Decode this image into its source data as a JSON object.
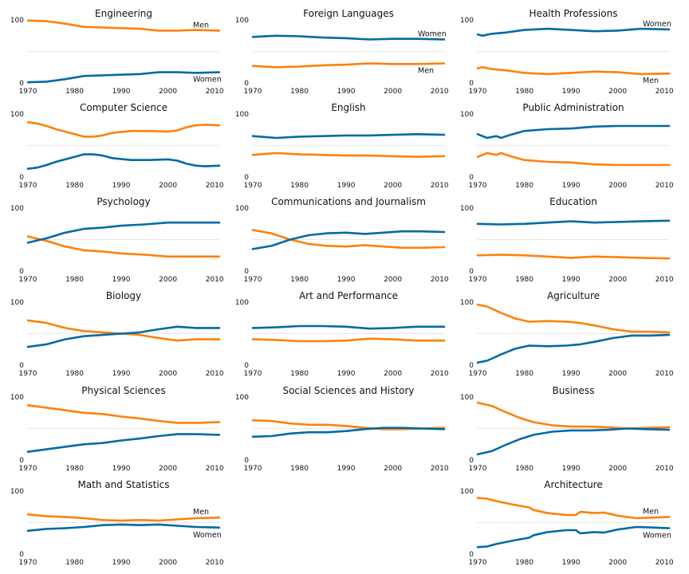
{
  "chart_data": {
    "type": "line",
    "title": "",
    "x_ticks": [
      "1970",
      "1980",
      "1990",
      "2000",
      "2010"
    ],
    "y_ticks": [
      "0",
      "100"
    ],
    "xlim": [
      1970,
      2011
    ],
    "ylim": [
      0,
      100
    ],
    "colors": {
      "women": "#006ba4",
      "men": "#ff800e",
      "grid": "#e6e6e6"
    },
    "panels": [
      {
        "title": "Engineering",
        "women_label": "Women",
        "men_label": "Men",
        "women": [
          [
            1970,
            1
          ],
          [
            1974,
            2
          ],
          [
            1978,
            6
          ],
          [
            1982,
            11
          ],
          [
            1986,
            12
          ],
          [
            1990,
            13
          ],
          [
            1994,
            14
          ],
          [
            1998,
            17
          ],
          [
            2002,
            17
          ],
          [
            2006,
            16
          ],
          [
            2011,
            17
          ]
        ]
      },
      {
        "title": "Foreign Languages",
        "women_label": "Women",
        "men_label": "Men",
        "women": [
          [
            1970,
            73
          ],
          [
            1975,
            75
          ],
          [
            1980,
            74
          ],
          [
            1985,
            72
          ],
          [
            1990,
            71
          ],
          [
            1995,
            69
          ],
          [
            2000,
            70
          ],
          [
            2005,
            70
          ],
          [
            2011,
            69
          ]
        ]
      },
      {
        "title": "Health Professions",
        "women_label": "Women",
        "men_label": "Men",
        "women": [
          [
            1970,
            77
          ],
          [
            1971,
            75
          ],
          [
            1973,
            78
          ],
          [
            1976,
            80
          ],
          [
            1980,
            84
          ],
          [
            1985,
            86
          ],
          [
            1990,
            84
          ],
          [
            1995,
            82
          ],
          [
            2000,
            83
          ],
          [
            2005,
            86
          ],
          [
            2011,
            85
          ]
        ]
      },
      {
        "title": "Computer Science",
        "women": [
          [
            1970,
            13
          ],
          [
            1972,
            15
          ],
          [
            1974,
            19
          ],
          [
            1976,
            24
          ],
          [
            1978,
            28
          ],
          [
            1980,
            32
          ],
          [
            1982,
            36
          ],
          [
            1984,
            36
          ],
          [
            1986,
            34
          ],
          [
            1988,
            30
          ],
          [
            1992,
            27
          ],
          [
            1996,
            27
          ],
          [
            2000,
            28
          ],
          [
            2002,
            26
          ],
          [
            2004,
            21
          ],
          [
            2006,
            18
          ],
          [
            2008,
            17
          ],
          [
            2011,
            18
          ]
        ]
      },
      {
        "title": "English",
        "women": [
          [
            1970,
            65
          ],
          [
            1975,
            62
          ],
          [
            1980,
            64
          ],
          [
            1985,
            65
          ],
          [
            1990,
            66
          ],
          [
            1995,
            66
          ],
          [
            2000,
            67
          ],
          [
            2005,
            68
          ],
          [
            2011,
            67
          ]
        ]
      },
      {
        "title": "Public Administration",
        "women": [
          [
            1970,
            68
          ],
          [
            1972,
            62
          ],
          [
            1974,
            65
          ],
          [
            1975,
            62
          ],
          [
            1977,
            67
          ],
          [
            1980,
            73
          ],
          [
            1985,
            76
          ],
          [
            1990,
            77
          ],
          [
            1995,
            80
          ],
          [
            2000,
            81
          ],
          [
            2005,
            81
          ],
          [
            2011,
            81
          ]
        ]
      },
      {
        "title": "Psychology",
        "women": [
          [
            1970,
            45
          ],
          [
            1974,
            52
          ],
          [
            1978,
            61
          ],
          [
            1982,
            67
          ],
          [
            1986,
            69
          ],
          [
            1990,
            72
          ],
          [
            1995,
            74
          ],
          [
            2000,
            77
          ],
          [
            2005,
            77
          ],
          [
            2011,
            77
          ]
        ]
      },
      {
        "title": "Communications and Journalism",
        "women": [
          [
            1970,
            35
          ],
          [
            1974,
            40
          ],
          [
            1978,
            50
          ],
          [
            1982,
            57
          ],
          [
            1986,
            60
          ],
          [
            1990,
            61
          ],
          [
            1994,
            59
          ],
          [
            1998,
            61
          ],
          [
            2002,
            63
          ],
          [
            2006,
            63
          ],
          [
            2011,
            62
          ]
        ]
      },
      {
        "title": "Education",
        "women": [
          [
            1970,
            75
          ],
          [
            1975,
            74
          ],
          [
            1980,
            75
          ],
          [
            1985,
            77
          ],
          [
            1990,
            79
          ],
          [
            1995,
            77
          ],
          [
            2000,
            78
          ],
          [
            2005,
            79
          ],
          [
            2011,
            80
          ]
        ]
      },
      {
        "title": "Biology",
        "women": [
          [
            1970,
            29
          ],
          [
            1974,
            33
          ],
          [
            1978,
            41
          ],
          [
            1982,
            46
          ],
          [
            1986,
            48
          ],
          [
            1990,
            50
          ],
          [
            1994,
            52
          ],
          [
            1998,
            57
          ],
          [
            2002,
            61
          ],
          [
            2006,
            59
          ],
          [
            2011,
            59
          ]
        ]
      },
      {
        "title": "Art and Performance",
        "women": [
          [
            1970,
            59
          ],
          [
            1975,
            60
          ],
          [
            1980,
            62
          ],
          [
            1985,
            62
          ],
          [
            1990,
            61
          ],
          [
            1995,
            58
          ],
          [
            2000,
            59
          ],
          [
            2005,
            61
          ],
          [
            2011,
            61
          ]
        ]
      },
      {
        "title": "Agriculture",
        "women": [
          [
            1970,
            4
          ],
          [
            1972,
            7
          ],
          [
            1975,
            17
          ],
          [
            1978,
            26
          ],
          [
            1981,
            31
          ],
          [
            1985,
            30
          ],
          [
            1989,
            31
          ],
          [
            1992,
            33
          ],
          [
            1995,
            37
          ],
          [
            1999,
            43
          ],
          [
            2003,
            47
          ],
          [
            2007,
            47
          ],
          [
            2011,
            48
          ]
        ]
      },
      {
        "title": "Physical Sciences",
        "women": [
          [
            1970,
            13
          ],
          [
            1974,
            17
          ],
          [
            1978,
            21
          ],
          [
            1982,
            25
          ],
          [
            1986,
            27
          ],
          [
            1990,
            31
          ],
          [
            1994,
            34
          ],
          [
            1998,
            38
          ],
          [
            2002,
            41
          ],
          [
            2006,
            41
          ],
          [
            2011,
            40
          ]
        ]
      },
      {
        "title": "Social Sciences and History",
        "women": [
          [
            1970,
            37
          ],
          [
            1974,
            38
          ],
          [
            1978,
            42
          ],
          [
            1982,
            44
          ],
          [
            1986,
            44
          ],
          [
            1990,
            46
          ],
          [
            1994,
            49
          ],
          [
            1998,
            51
          ],
          [
            2002,
            51
          ],
          [
            2006,
            50
          ],
          [
            2011,
            49
          ]
        ]
      },
      {
        "title": "Business",
        "women": [
          [
            1970,
            9
          ],
          [
            1973,
            14
          ],
          [
            1976,
            24
          ],
          [
            1979,
            33
          ],
          [
            1982,
            40
          ],
          [
            1986,
            45
          ],
          [
            1990,
            47
          ],
          [
            1994,
            47
          ],
          [
            1998,
            48
          ],
          [
            2002,
            50
          ],
          [
            2006,
            49
          ],
          [
            2011,
            48
          ]
        ]
      },
      {
        "title": "Math and Statistics",
        "women_label": "Women",
        "men_label": "Men",
        "women": [
          [
            1970,
            37
          ],
          [
            1974,
            40
          ],
          [
            1978,
            41
          ],
          [
            1982,
            43
          ],
          [
            1986,
            46
          ],
          [
            1990,
            47
          ],
          [
            1994,
            46
          ],
          [
            1998,
            47
          ],
          [
            2002,
            45
          ],
          [
            2006,
            43
          ],
          [
            2011,
            42
          ]
        ]
      },
      null,
      {
        "title": "Architecture",
        "women_label": "Women",
        "men_label": "Men",
        "women": [
          [
            1970,
            11
          ],
          [
            1972,
            12
          ],
          [
            1974,
            16
          ],
          [
            1978,
            22
          ],
          [
            1981,
            26
          ],
          [
            1982,
            30
          ],
          [
            1985,
            35
          ],
          [
            1989,
            38
          ],
          [
            1991,
            38
          ],
          [
            1992,
            33
          ],
          [
            1995,
            35
          ],
          [
            1997,
            34
          ],
          [
            2000,
            39
          ],
          [
            2004,
            43
          ],
          [
            2008,
            42
          ],
          [
            2011,
            41
          ]
        ]
      }
    ]
  }
}
